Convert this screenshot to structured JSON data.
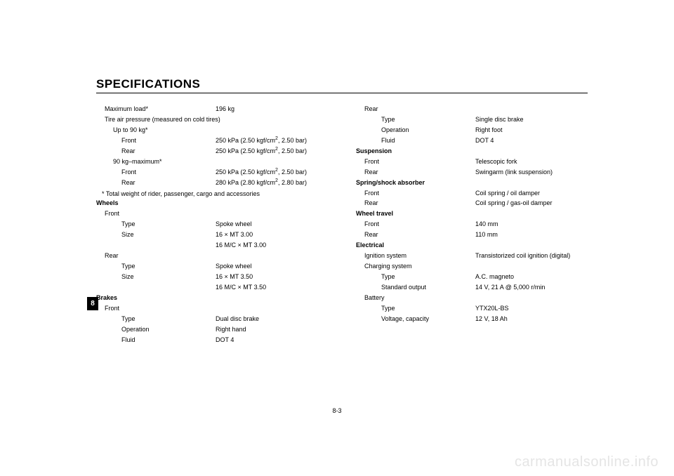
{
  "title": "SPECIFICATIONS",
  "chapter_tab": "8",
  "page_number": "8-3",
  "watermark": "carmanualsonline.info",
  "left": {
    "max_load": {
      "label": "Maximum load*",
      "value": "196 kg"
    },
    "tire_pressure_header": "Tire air pressure (measured on cold tires)",
    "up_to_90": "Up to 90 kg*",
    "up_front": {
      "label": "Front",
      "value_prefix": "250 kPa (2.50 kgf/cm",
      "value_suffix": ", 2.50 bar)"
    },
    "up_rear": {
      "label": "Rear",
      "value_prefix": "250 kPa (2.50 kgf/cm",
      "value_suffix": ", 2.50 bar)"
    },
    "ninety_max": "90 kg–maximum*",
    "nm_front": {
      "label": "Front",
      "value_prefix": "250 kPa (2.50 kgf/cm",
      "value_suffix": ", 2.50 bar)"
    },
    "nm_rear": {
      "label": "Rear",
      "value_prefix": "280 kPa (2.80 kgf/cm",
      "value_suffix": ", 2.80 bar)"
    },
    "footnote": "* Total weight of rider, passenger, cargo and accessories",
    "wheels_header": "Wheels",
    "front_label": "Front",
    "front_type": {
      "label": "Type",
      "value": "Spoke wheel"
    },
    "front_size": {
      "label": "Size",
      "value": "16 × MT 3.00"
    },
    "front_size2": "16 M/C × MT 3.00",
    "rear_label": "Rear",
    "rear_type": {
      "label": "Type",
      "value": "Spoke wheel"
    },
    "rear_size": {
      "label": "Size",
      "value": "16 × MT 3.50"
    },
    "rear_size2": "16 M/C × MT 3.50",
    "brakes_header": "Brakes",
    "brakes_front": "Front",
    "bf_type": {
      "label": "Type",
      "value": "Dual disc brake"
    },
    "bf_op": {
      "label": "Operation",
      "value": "Right hand"
    },
    "bf_fluid": {
      "label": "Fluid",
      "value": "DOT 4"
    }
  },
  "right": {
    "brakes_rear": "Rear",
    "br_type": {
      "label": "Type",
      "value": "Single disc brake"
    },
    "br_op": {
      "label": "Operation",
      "value": "Right foot"
    },
    "br_fluid": {
      "label": "Fluid",
      "value": "DOT 4"
    },
    "suspension_header": "Suspension",
    "susp_front": {
      "label": "Front",
      "value": "Telescopic fork"
    },
    "susp_rear": {
      "label": "Rear",
      "value": "Swingarm (link suspension)"
    },
    "spring_header": "Spring/shock absorber",
    "spring_front": {
      "label": "Front",
      "value": "Coil spring / oil damper"
    },
    "spring_rear": {
      "label": "Rear",
      "value": "Coil spring / gas-oil damper"
    },
    "travel_header": "Wheel travel",
    "travel_front": {
      "label": "Front",
      "value": "140 mm"
    },
    "travel_rear": {
      "label": "Rear",
      "value": "110 mm"
    },
    "electrical_header": "Electrical",
    "ignition": {
      "label": "Ignition system",
      "value": "Transistorized coil ignition (digital)"
    },
    "charging_label": "Charging system",
    "charging_type": {
      "label": "Type",
      "value": "A.C. magneto"
    },
    "charging_output": {
      "label": "Standard output",
      "value": "14 V, 21 A @ 5,000 r/min"
    },
    "battery_label": "Battery",
    "battery_type": {
      "label": "Type",
      "value": "YTX20L-BS"
    },
    "battery_vc": {
      "label": "Voltage, capacity",
      "value": "12 V, 18 Ah"
    }
  }
}
